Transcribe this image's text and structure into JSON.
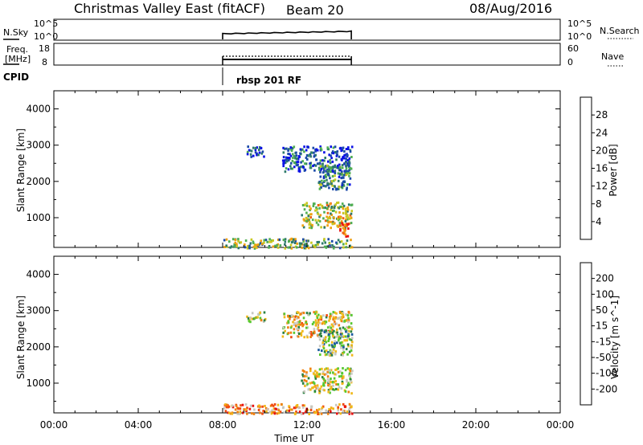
{
  "header": {
    "station": "Christmas Valley East (fitACF)",
    "beam": "Beam 20",
    "date": "08/Aug/2016"
  },
  "nsky_panel": {
    "left_label": "N.Sky",
    "right_label": "N.Search",
    "left_ticks": [
      "10^5",
      "10^0"
    ],
    "right_ticks": [
      "10^5",
      "10^0"
    ]
  },
  "freq_panel": {
    "left_label_line1": "Freq.",
    "left_label_line2": "[MHz]",
    "right_label": "Nave",
    "left_ticks": [
      "18",
      "8"
    ],
    "right_ticks": [
      "60",
      "0"
    ]
  },
  "cpid": {
    "label": "CPID",
    "program": "rbsp 201 RF"
  },
  "chart_data": [
    {
      "type": "heatmap",
      "panel": "power",
      "ylabel": "Slant Range [km]",
      "ylim": [
        180,
        4500
      ],
      "yticks": [
        "1000",
        "2000",
        "3000",
        "4000"
      ],
      "xlim_hours": [
        0,
        24
      ],
      "data_window_hours": [
        8.0,
        14.1
      ],
      "colorbar": {
        "label": "Power [dB]",
        "ticks": [
          "4",
          "8",
          "12",
          "16",
          "20",
          "24",
          "28"
        ],
        "colors": [
          "#0a10e6",
          "#1b4aa8",
          "#2e7a6a",
          "#4fae52",
          "#c8c820",
          "#f0a010",
          "#f06010",
          "#e81010"
        ],
        "range": [
          0,
          32
        ]
      },
      "scatter_regions": [
        {
          "t": [
            11.7,
            14.1
          ],
          "r": [
            750,
            1450
          ],
          "level": 0.55
        },
        {
          "t": [
            8.0,
            14.1
          ],
          "r": [
            180,
            450
          ],
          "level": 0.45
        },
        {
          "t": [
            9.1,
            10.0
          ],
          "r": [
            2700,
            3000
          ],
          "level": 0.15
        },
        {
          "t": [
            10.8,
            14.1
          ],
          "r": [
            2300,
            3000
          ],
          "level": 0.2
        },
        {
          "t": [
            12.5,
            14.1
          ],
          "r": [
            1800,
            2500
          ],
          "level": 0.35
        },
        {
          "t": [
            13.5,
            14.0
          ],
          "r": [
            500,
            900
          ],
          "level": 0.85
        }
      ]
    },
    {
      "type": "heatmap",
      "panel": "velocity",
      "ylabel": "Slant Range [km]",
      "xlabel": "Time UT",
      "ylim": [
        180,
        4500
      ],
      "yticks": [
        "1000",
        "2000",
        "3000",
        "4000"
      ],
      "xticks": [
        "00:00",
        "04:00",
        "08:00",
        "12:00",
        "16:00",
        "20:00",
        "00:00"
      ],
      "xlim_hours": [
        0,
        24
      ],
      "data_window_hours": [
        8.0,
        14.1
      ],
      "colorbar": {
        "label": "Velocity [m s^-1]",
        "ticks": [
          "200",
          "100",
          "50",
          "15",
          "-15",
          "-50",
          "-100",
          "-200"
        ],
        "colors": [
          "#1030d8",
          "#1a5aa0",
          "#2a8040",
          "#58c830",
          "#c8c8c0",
          "#f0b818",
          "#f08010",
          "#f04a10",
          "#e81010"
        ],
        "range": [
          -250,
          250
        ]
      },
      "scatter_regions": [
        {
          "t": [
            11.7,
            14.1
          ],
          "r": [
            750,
            1450
          ],
          "level": 0.5
        },
        {
          "t": [
            8.0,
            14.1
          ],
          "r": [
            180,
            450
          ],
          "level": 0.7
        },
        {
          "t": [
            9.1,
            10.0
          ],
          "r": [
            2700,
            3000
          ],
          "level": 0.5
        },
        {
          "t": [
            10.8,
            14.1
          ],
          "r": [
            2300,
            3000
          ],
          "level": 0.55
        },
        {
          "t": [
            12.5,
            14.1
          ],
          "r": [
            1800,
            2500
          ],
          "level": 0.4
        }
      ]
    }
  ]
}
